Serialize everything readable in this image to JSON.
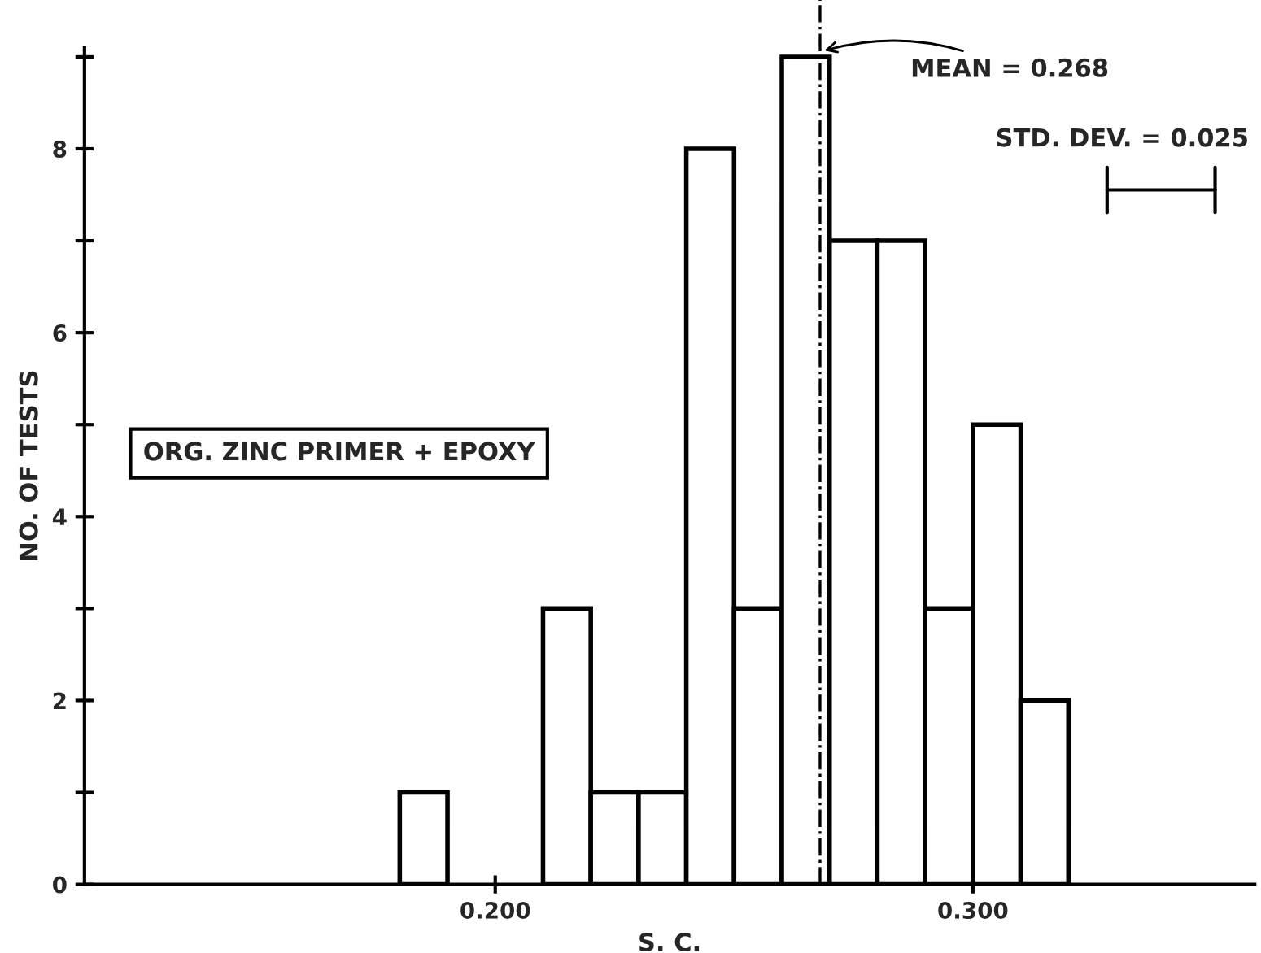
{
  "chart_data": {
    "type": "histogram",
    "xlabel": "S. C.",
    "ylabel": "NO. OF TESTS",
    "bins": [
      0.18,
      0.19,
      0.2,
      0.21,
      0.22,
      0.23,
      0.24,
      0.25,
      0.26,
      0.27,
      0.28,
      0.29,
      0.3,
      0.31,
      0.32
    ],
    "values": [
      1,
      0,
      0,
      3,
      1,
      1,
      8,
      3,
      9,
      7,
      7,
      3,
      5,
      2
    ],
    "color": "#000000",
    "xlim": [
      0.114,
      0.359
    ],
    "xticks": [
      {
        "value": 0.2,
        "label": "0.200"
      },
      {
        "value": 0.3,
        "label": "0.300"
      }
    ],
    "ylim": [
      0,
      9.1
    ],
    "yticks": [
      0,
      {
        "value": 1,
        "label": null
      },
      2,
      {
        "value": 3,
        "label": null
      },
      4,
      {
        "value": 5,
        "label": null
      },
      6,
      {
        "value": 7,
        "label": null
      },
      8,
      {
        "value": 9,
        "label": null
      }
    ],
    "grid": false,
    "ref_lines": [
      {
        "axis": "x",
        "value": 0.268,
        "label": "MEAN = 0.268",
        "line_style": "dashdot",
        "color": "#000000"
      }
    ],
    "annotations": [
      "STD. DEV. = 0.025",
      "ORG. ZINC PRIMER + EPOXY"
    ]
  }
}
